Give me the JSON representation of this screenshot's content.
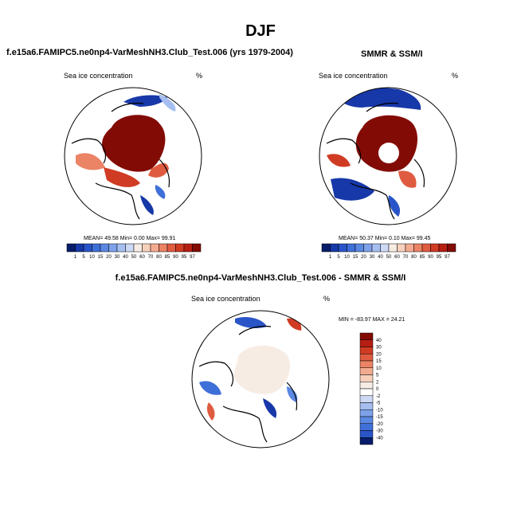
{
  "figure": {
    "title": "DJF"
  },
  "panels": [
    {
      "case_title": "f.e15a6.FAMIPC5.ne0np4-VarMeshNH3.Club_Test.006 (yrs 1979-2004)",
      "left_label": "Sea ice concentration",
      "right_label": "%",
      "stats": "MEAN=  49.58  Min=   0.00  Max=  99.91"
    },
    {
      "case_title": "SMMR & SSM/I",
      "left_label": "Sea ice concentration",
      "right_label": "%",
      "stats": "MEAN=  50.37  Min=   0.10  Max=  99.45"
    },
    {
      "case_title": "f.e15a6.FAMIPC5.ne0np4-VarMeshNH3.Club_Test.006 - SMMR & SSM/I",
      "left_label": "Sea ice concentration",
      "right_label": "%",
      "stats": "MIN = -83.97 MAX =  24.21"
    }
  ],
  "chart_data": [
    {
      "type": "heatmap",
      "projection": "north polar stereographic",
      "variable": "Sea ice concentration",
      "units": "%",
      "mean": 49.58,
      "min": 0.0,
      "max": 99.91,
      "colorbar": {
        "orientation": "horizontal",
        "levels": [
          "1",
          "5",
          "10",
          "15",
          "20",
          "30",
          "40",
          "50",
          "60",
          "70",
          "80",
          "85",
          "90",
          "95",
          "97"
        ],
        "colors": [
          "#081d6a",
          "#1738a8",
          "#2a55c8",
          "#3f6fd8",
          "#5b88e2",
          "#7ea2ea",
          "#a6bff0",
          "#cdd9f4",
          "#f7ece4",
          "#f7d0bc",
          "#f3ab8f",
          "#eb8465",
          "#e05c40",
          "#d03b23",
          "#b51f12",
          "#830b05"
        ]
      }
    },
    {
      "type": "heatmap",
      "projection": "north polar stereographic",
      "variable": "Sea ice concentration",
      "units": "%",
      "mean": 50.37,
      "min": 0.1,
      "max": 99.45,
      "colorbar": {
        "orientation": "horizontal",
        "levels": [
          "1",
          "5",
          "10",
          "15",
          "20",
          "30",
          "40",
          "50",
          "60",
          "70",
          "80",
          "85",
          "90",
          "95",
          "97"
        ],
        "colors": [
          "#081d6a",
          "#1738a8",
          "#2a55c8",
          "#3f6fd8",
          "#5b88e2",
          "#7ea2ea",
          "#a6bff0",
          "#cdd9f4",
          "#f7ece4",
          "#f7d0bc",
          "#f3ab8f",
          "#eb8465",
          "#e05c40",
          "#d03b23",
          "#b51f12",
          "#830b05"
        ]
      }
    },
    {
      "type": "heatmap",
      "projection": "north polar stereographic",
      "variable": "Sea ice concentration difference",
      "units": "%",
      "min": -83.97,
      "max": 24.21,
      "colorbar": {
        "orientation": "vertical",
        "levels": [
          "40",
          "30",
          "20",
          "15",
          "10",
          "5",
          "2",
          "0",
          "-2",
          "-5",
          "-10",
          "-15",
          "-20",
          "-30",
          "-40"
        ],
        "colors": [
          "#830b05",
          "#b51f12",
          "#d03b23",
          "#e05c40",
          "#eb8465",
          "#f3ab8f",
          "#f7d0bc",
          "#f7ece4",
          "#ffffff",
          "#cdd9f4",
          "#a6bff0",
          "#7ea2ea",
          "#5b88e2",
          "#3f6fd8",
          "#2a55c8",
          "#081d6a"
        ]
      }
    }
  ]
}
